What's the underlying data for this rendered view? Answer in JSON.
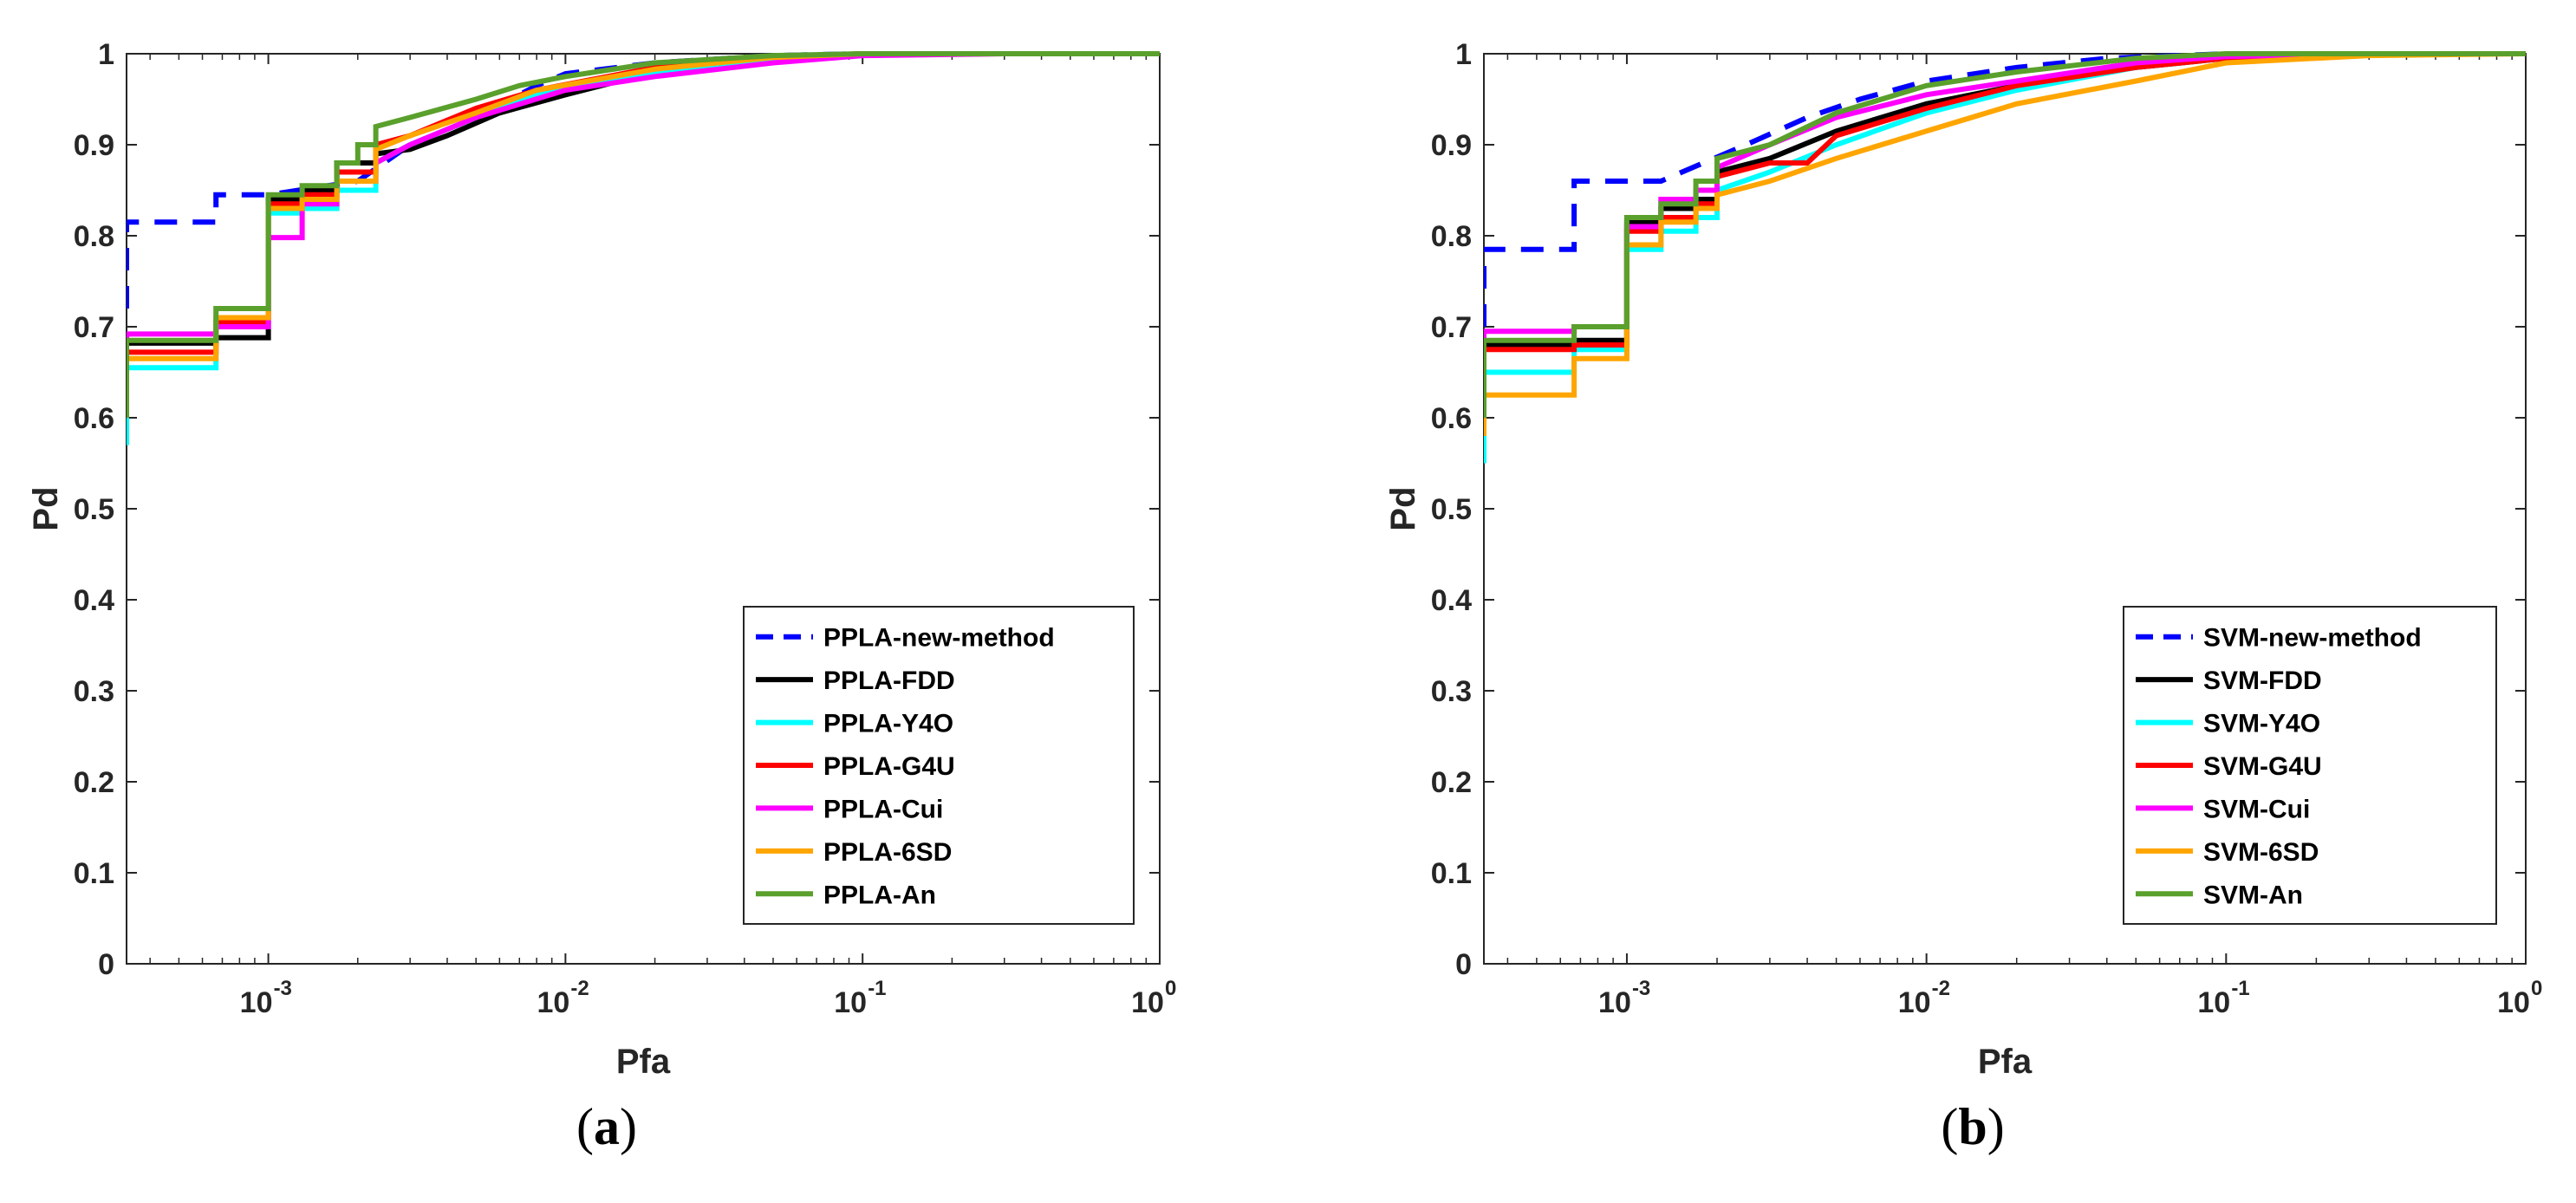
{
  "chart_data": [
    {
      "type": "line",
      "panel_label": "a",
      "xlabel": "Pfa",
      "ylabel": "Pd",
      "xscale": "log",
      "xlim": [
        0.0003333,
        1
      ],
      "ylim": [
        0,
        1
      ],
      "x_tick_bases": [
        "10",
        "10",
        "10",
        "10"
      ],
      "x_tick_exponents": [
        "-3",
        "-2",
        "-1",
        "0"
      ],
      "x_tick_values": [
        0.001,
        0.01,
        0.1,
        1
      ],
      "y_ticks": [
        "0",
        "0.1",
        "0.2",
        "0.3",
        "0.4",
        "0.5",
        "0.6",
        "0.7",
        "0.8",
        "0.9",
        "1"
      ],
      "y_tick_values": [
        0,
        0.1,
        0.2,
        0.3,
        0.4,
        0.5,
        0.6,
        0.7,
        0.8,
        0.9,
        1
      ],
      "legend_position": "bottom-right",
      "series": [
        {
          "name": "PPLA-new-method",
          "color": "#0000ff",
          "dashed": true,
          "x": [
            0.0003333,
            0.0003333,
            0.0006667,
            0.0006667,
            0.001,
            0.002,
            0.003,
            0.005,
            0.008,
            0.01,
            0.02,
            0.05,
            0.1,
            0.3,
            1
          ],
          "y": [
            0.72,
            0.815,
            0.815,
            0.845,
            0.845,
            0.86,
            0.9,
            0.93,
            0.965,
            0.978,
            0.99,
            0.998,
            1,
            1,
            1
          ]
        },
        {
          "name": "PPLA-FDD",
          "color": "#000000",
          "dashed": false,
          "x": [
            0.0003333,
            0.0003333,
            0.0006667,
            0.0006667,
            0.001,
            0.001,
            0.0013,
            0.0013,
            0.0017,
            0.0017,
            0.0023,
            0.0023,
            0.003,
            0.004,
            0.006,
            0.01,
            0.02,
            0.05,
            0.1,
            0.3,
            1
          ],
          "y": [
            0.6,
            0.682,
            0.682,
            0.688,
            0.688,
            0.84,
            0.84,
            0.85,
            0.85,
            0.88,
            0.88,
            0.89,
            0.895,
            0.91,
            0.935,
            0.955,
            0.98,
            0.995,
            1,
            1,
            1
          ]
        },
        {
          "name": "PPLA-Y4O",
          "color": "#00ffff",
          "dashed": false,
          "x": [
            0.0003333,
            0.0003333,
            0.0006667,
            0.0006667,
            0.001,
            0.001,
            0.0013,
            0.0013,
            0.0017,
            0.0017,
            0.0023,
            0.0023,
            0.003,
            0.005,
            0.008,
            0.02,
            0.05,
            0.1,
            0.3,
            1
          ],
          "y": [
            0.57,
            0.655,
            0.655,
            0.7,
            0.7,
            0.825,
            0.825,
            0.83,
            0.83,
            0.85,
            0.85,
            0.88,
            0.9,
            0.93,
            0.955,
            0.98,
            0.995,
            1,
            1,
            1
          ]
        },
        {
          "name": "PPLA-G4U",
          "color": "#ff0000",
          "dashed": false,
          "x": [
            0.0003333,
            0.0003333,
            0.0006667,
            0.0006667,
            0.001,
            0.001,
            0.0013,
            0.0013,
            0.0017,
            0.0017,
            0.0023,
            0.0023,
            0.003,
            0.005,
            0.008,
            0.02,
            0.05,
            0.1,
            0.3,
            1
          ],
          "y": [
            0.6,
            0.672,
            0.672,
            0.705,
            0.705,
            0.835,
            0.835,
            0.845,
            0.845,
            0.87,
            0.87,
            0.9,
            0.91,
            0.94,
            0.96,
            0.985,
            0.997,
            1,
            1,
            1
          ]
        },
        {
          "name": "PPLA-Cui",
          "color": "#ff00ff",
          "dashed": false,
          "x": [
            0.0003333,
            0.0003333,
            0.0006667,
            0.0006667,
            0.001,
            0.001,
            0.0013,
            0.0013,
            0.0017,
            0.0017,
            0.0023,
            0.0023,
            0.003,
            0.005,
            0.01,
            0.02,
            0.05,
            0.1,
            0.3,
            1
          ],
          "y": [
            0.6,
            0.692,
            0.692,
            0.7,
            0.7,
            0.798,
            0.798,
            0.835,
            0.835,
            0.86,
            0.86,
            0.88,
            0.9,
            0.93,
            0.96,
            0.975,
            0.99,
            0.998,
            1,
            1
          ]
        },
        {
          "name": "PPLA-6SD",
          "color": "#ffa500",
          "dashed": false,
          "x": [
            0.0003333,
            0.0003333,
            0.0006667,
            0.0006667,
            0.001,
            0.001,
            0.0013,
            0.0013,
            0.0017,
            0.0017,
            0.0023,
            0.0023,
            0.003,
            0.005,
            0.008,
            0.02,
            0.05,
            0.1,
            0.3,
            1
          ],
          "y": [
            0.6,
            0.665,
            0.665,
            0.71,
            0.71,
            0.83,
            0.83,
            0.84,
            0.84,
            0.86,
            0.86,
            0.895,
            0.91,
            0.935,
            0.96,
            0.983,
            0.996,
            1,
            1,
            1
          ]
        },
        {
          "name": "PPLA-An",
          "color": "#5aa02c",
          "dashed": false,
          "x": [
            0.0003333,
            0.0003333,
            0.0006667,
            0.0006667,
            0.001,
            0.001,
            0.0013,
            0.0013,
            0.0017,
            0.0017,
            0.002,
            0.002,
            0.0023,
            0.0023,
            0.003,
            0.005,
            0.007,
            0.01,
            0.02,
            0.05,
            0.1,
            0.3,
            1
          ],
          "y": [
            0.6,
            0.685,
            0.685,
            0.72,
            0.72,
            0.845,
            0.845,
            0.855,
            0.855,
            0.88,
            0.88,
            0.9,
            0.9,
            0.92,
            0.93,
            0.95,
            0.965,
            0.975,
            0.99,
            0.998,
            1,
            1,
            1
          ]
        }
      ]
    },
    {
      "type": "line",
      "panel_label": "b",
      "xlabel": "Pfa",
      "ylabel": "Pd",
      "xscale": "log",
      "xlim": [
        0.0003333,
        1
      ],
      "ylim": [
        0,
        1
      ],
      "x_tick_bases": [
        "10",
        "10",
        "10",
        "10"
      ],
      "x_tick_exponents": [
        "-3",
        "-2",
        "-1",
        "0"
      ],
      "x_tick_values": [
        0.001,
        0.01,
        0.1,
        1
      ],
      "y_ticks": [
        "0",
        "0.1",
        "0.2",
        "0.3",
        "0.4",
        "0.5",
        "0.6",
        "0.7",
        "0.8",
        "0.9",
        "1"
      ],
      "y_tick_values": [
        0,
        0.1,
        0.2,
        0.3,
        0.4,
        0.5,
        0.6,
        0.7,
        0.8,
        0.9,
        1
      ],
      "legend_position": "bottom-right",
      "series": [
        {
          "name": "SVM-new-method",
          "color": "#0000ff",
          "dashed": true,
          "x": [
            0.0003333,
            0.0003333,
            0.0006667,
            0.0006667,
            0.0013,
            0.0018,
            0.0025,
            0.004,
            0.006,
            0.01,
            0.02,
            0.04,
            0.1,
            0.3,
            1
          ],
          "y": [
            0.7,
            0.785,
            0.785,
            0.86,
            0.86,
            0.88,
            0.9,
            0.93,
            0.95,
            0.97,
            0.985,
            0.995,
            1,
            1,
            1
          ]
        },
        {
          "name": "SVM-FDD",
          "color": "#000000",
          "dashed": false,
          "x": [
            0.0003333,
            0.0003333,
            0.0006667,
            0.0006667,
            0.001,
            0.001,
            0.0013,
            0.0013,
            0.0017,
            0.0017,
            0.002,
            0.002,
            0.003,
            0.005,
            0.01,
            0.02,
            0.05,
            0.1,
            0.3,
            1
          ],
          "y": [
            0.6,
            0.68,
            0.68,
            0.685,
            0.685,
            0.815,
            0.815,
            0.83,
            0.83,
            0.84,
            0.84,
            0.87,
            0.885,
            0.915,
            0.945,
            0.965,
            0.985,
            0.995,
            1,
            1
          ]
        },
        {
          "name": "SVM-Y4O",
          "color": "#00ffff",
          "dashed": false,
          "x": [
            0.0003333,
            0.0003333,
            0.0006667,
            0.0006667,
            0.001,
            0.001,
            0.0013,
            0.0013,
            0.0017,
            0.0017,
            0.002,
            0.002,
            0.003,
            0.005,
            0.01,
            0.02,
            0.05,
            0.1,
            0.3,
            1
          ],
          "y": [
            0.55,
            0.65,
            0.65,
            0.675,
            0.675,
            0.785,
            0.785,
            0.805,
            0.805,
            0.82,
            0.82,
            0.85,
            0.87,
            0.9,
            0.935,
            0.96,
            0.985,
            0.995,
            1,
            1
          ]
        },
        {
          "name": "SVM-G4U",
          "color": "#ff0000",
          "dashed": false,
          "x": [
            0.0003333,
            0.0003333,
            0.0006667,
            0.0006667,
            0.001,
            0.001,
            0.0013,
            0.0013,
            0.0017,
            0.0017,
            0.002,
            0.002,
            0.003,
            0.004,
            0.005,
            0.01,
            0.02,
            0.05,
            0.1,
            0.3,
            1
          ],
          "y": [
            0.6,
            0.675,
            0.675,
            0.68,
            0.68,
            0.805,
            0.805,
            0.82,
            0.82,
            0.835,
            0.835,
            0.865,
            0.88,
            0.88,
            0.91,
            0.94,
            0.965,
            0.985,
            0.995,
            1,
            1
          ]
        },
        {
          "name": "SVM-Cui",
          "color": "#ff00ff",
          "dashed": false,
          "x": [
            0.0003333,
            0.0003333,
            0.0006667,
            0.0006667,
            0.001,
            0.001,
            0.0013,
            0.0013,
            0.0017,
            0.0017,
            0.002,
            0.002,
            0.003,
            0.005,
            0.01,
            0.02,
            0.05,
            0.1,
            0.3,
            1
          ],
          "y": [
            0.6,
            0.695,
            0.695,
            0.7,
            0.7,
            0.81,
            0.81,
            0.84,
            0.84,
            0.85,
            0.85,
            0.875,
            0.9,
            0.93,
            0.955,
            0.97,
            0.99,
            0.997,
            1,
            1
          ]
        },
        {
          "name": "SVM-6SD",
          "color": "#ffa500",
          "dashed": false,
          "x": [
            0.0003333,
            0.0003333,
            0.0006667,
            0.0006667,
            0.001,
            0.001,
            0.0013,
            0.0013,
            0.0017,
            0.0017,
            0.002,
            0.002,
            0.003,
            0.005,
            0.01,
            0.02,
            0.05,
            0.1,
            0.3,
            1
          ],
          "y": [
            0.58,
            0.625,
            0.625,
            0.665,
            0.665,
            0.79,
            0.79,
            0.815,
            0.815,
            0.83,
            0.83,
            0.845,
            0.86,
            0.885,
            0.915,
            0.945,
            0.97,
            0.99,
            0.998,
            1
          ]
        },
        {
          "name": "SVM-An",
          "color": "#5aa02c",
          "dashed": false,
          "x": [
            0.0003333,
            0.0003333,
            0.0006667,
            0.0006667,
            0.001,
            0.001,
            0.0013,
            0.0013,
            0.0017,
            0.0017,
            0.002,
            0.002,
            0.003,
            0.005,
            0.01,
            0.02,
            0.05,
            0.1,
            0.3,
            1
          ],
          "y": [
            0.6,
            0.685,
            0.685,
            0.7,
            0.7,
            0.82,
            0.82,
            0.835,
            0.835,
            0.86,
            0.86,
            0.885,
            0.9,
            0.935,
            0.965,
            0.98,
            0.995,
            1,
            1,
            1
          ]
        }
      ]
    }
  ]
}
